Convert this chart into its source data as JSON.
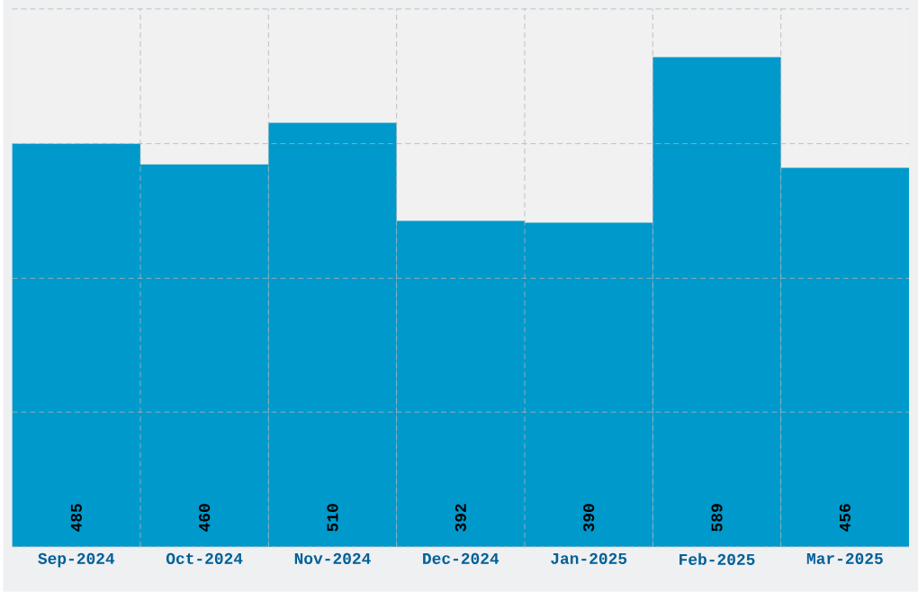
{
  "chart_data": {
    "type": "bar",
    "categories": [
      "Sep-2024",
      "Oct-2024",
      "Nov-2024",
      "Dec-2024",
      "Jan-2025",
      "Feb-2025",
      "Mar-2025"
    ],
    "values": [
      485,
      460,
      510,
      392,
      390,
      589,
      456
    ],
    "color": "#0099cc",
    "ylim": [
      0,
      647
    ],
    "yticks": [
      {
        "value": 0,
        "label": null
      },
      {
        "value": 162,
        "label": null
      },
      {
        "value": 323,
        "label": null
      },
      {
        "value": 485,
        "label": null
      },
      {
        "value": 647,
        "label": null
      }
    ],
    "tick_labels": "x",
    "grid": true,
    "data_labels": true
  }
}
